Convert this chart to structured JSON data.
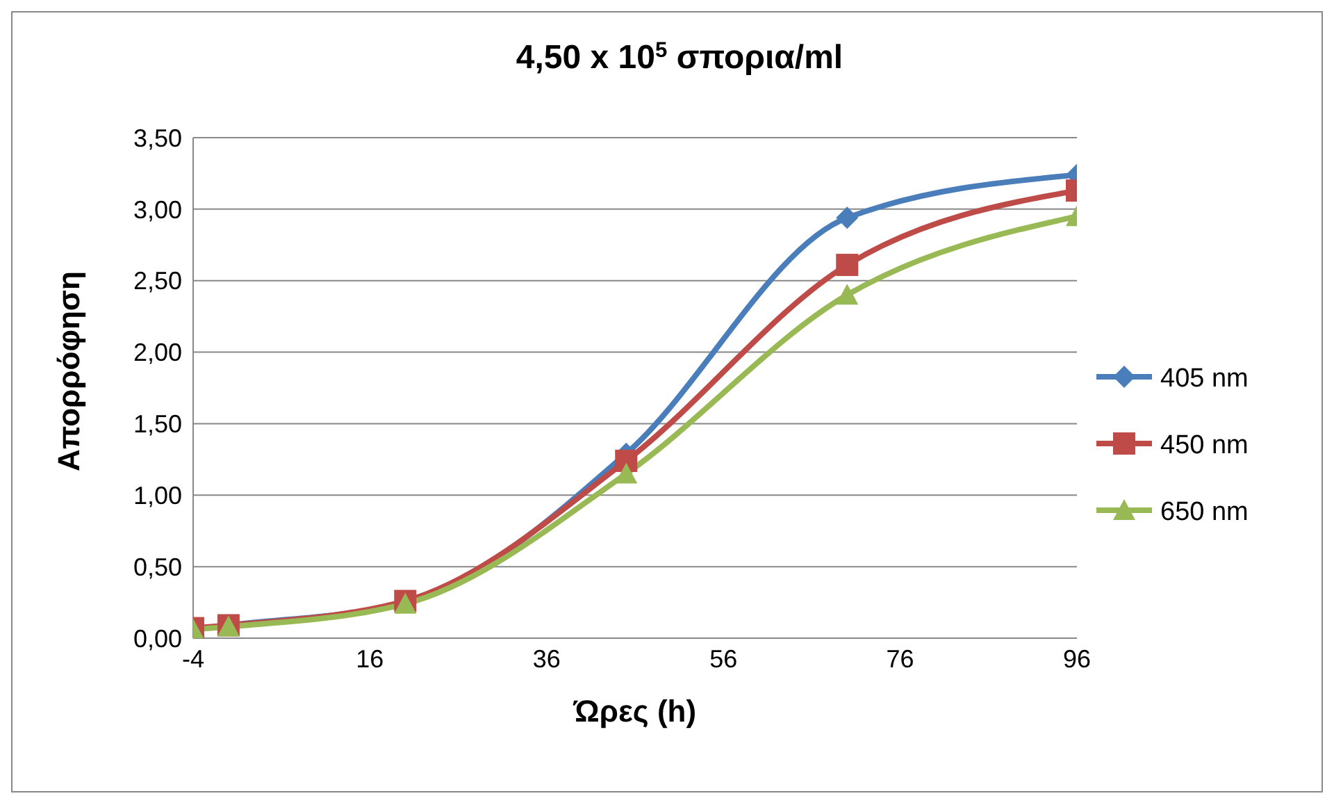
{
  "chart_data": {
    "type": "line",
    "title": "4,50 x 10$^{5}$ σπορια/ml",
    "xlabel": "Ώρες (h)",
    "ylabel": "Απορρόφηση",
    "x": [
      -4,
      0,
      20,
      45,
      70,
      96
    ],
    "series": [
      {
        "name": "405 nm",
        "color": "#4a7ebb",
        "marker": "diamond",
        "values": [
          0.06,
          0.09,
          0.25,
          1.29,
          2.94,
          3.24
        ]
      },
      {
        "name": "450 nm",
        "color": "#be4b48",
        "marker": "square",
        "values": [
          0.07,
          0.09,
          0.26,
          1.24,
          2.61,
          3.13
        ]
      },
      {
        "name": "650 nm",
        "color": "#98b954",
        "marker": "triangle",
        "values": [
          0.06,
          0.08,
          0.24,
          1.15,
          2.4,
          2.95
        ]
      }
    ],
    "xlim": [
      -4,
      96
    ],
    "xticks": [
      -4,
      16,
      36,
      56,
      76,
      96
    ],
    "ylim": [
      0,
      3.5
    ],
    "yticks": [
      {
        "value": 0,
        "label": "0,00"
      },
      {
        "value": 0.5,
        "label": "0,50"
      },
      {
        "value": 1,
        "label": "1,00"
      },
      {
        "value": 1.5,
        "label": "1,50"
      },
      {
        "value": 2,
        "label": "2,00"
      },
      {
        "value": 2.5,
        "label": "2,50"
      },
      {
        "value": 3,
        "label": "3,00"
      },
      {
        "value": 3.5,
        "label": "3,50"
      }
    ],
    "grid": "y",
    "legend": "right",
    "line_style": "solid"
  }
}
